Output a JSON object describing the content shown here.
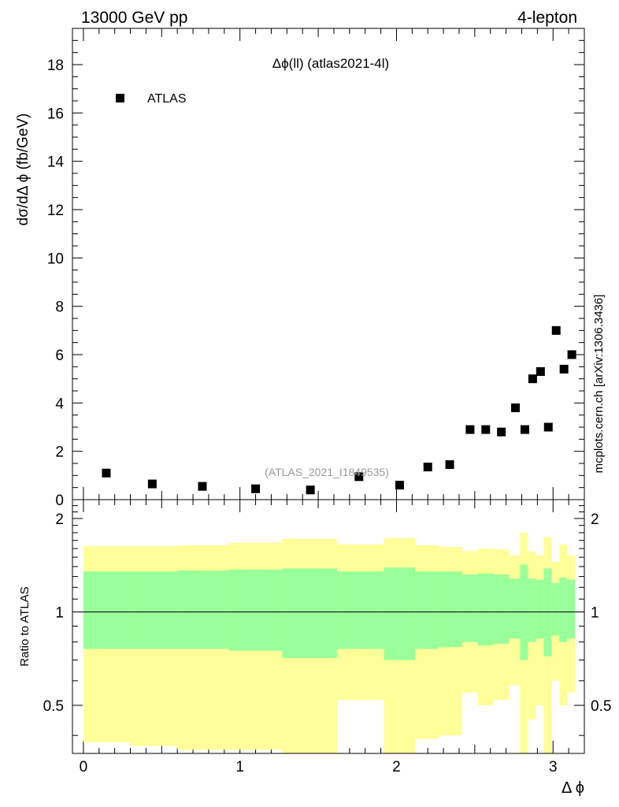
{
  "header": {
    "left": "13000 GeV pp",
    "right": "4-lepton"
  },
  "plot_title": "Δϕ(ll) (atlas2021-4l)",
  "watermark": "(ATLAS_2021_I1849535)",
  "side_label": "mcplots.cern.ch [arXiv:1306.3436]",
  "chart_data": [
    {
      "type": "scatter",
      "panel": "main",
      "ylabel": "dσ/dΔ ϕ (fb/GeV)",
      "xlim": [
        -0.07,
        3.2
      ],
      "ylim": [
        0,
        19.5
      ],
      "yticks": [
        0,
        2,
        4,
        6,
        8,
        10,
        12,
        14,
        16,
        18
      ],
      "legend": "top-left",
      "marker_color": "#000000",
      "series": [
        {
          "name": "ATLAS",
          "x": [
            0.146,
            0.44,
            0.76,
            1.1,
            1.45,
            1.76,
            2.02,
            2.2,
            2.34,
            2.47,
            2.57,
            2.67,
            2.76,
            2.82,
            2.87,
            2.92,
            2.97,
            3.02,
            3.07,
            3.12
          ],
          "y": [
            1.1,
            0.65,
            0.55,
            0.45,
            0.4,
            0.95,
            0.6,
            1.35,
            1.45,
            2.9,
            2.9,
            2.8,
            3.8,
            2.9,
            5.0,
            5.3,
            3.0,
            7.0,
            5.4,
            6.0
          ]
        }
      ]
    },
    {
      "type": "area",
      "panel": "ratio",
      "ylabel": "Ratio to ATLAS",
      "xlabel": "Δ ϕ",
      "xlim": [
        -0.07,
        3.2
      ],
      "ylim": [
        0.35,
        2.3
      ],
      "yticks": [
        0.5,
        1,
        2
      ],
      "ytick_labels": [
        "0.5",
        "1",
        "2"
      ],
      "xticks": [
        0,
        1,
        2,
        3
      ],
      "xtick_labels": [
        "0",
        "1",
        "2",
        "3"
      ],
      "reference_line": 1,
      "band_colors": {
        "outer": "#ffff99",
        "inner": "#99ff99"
      },
      "bins": [
        {
          "lo": 0.0,
          "hi": 0.3,
          "inner": [
            0.76,
            1.35
          ],
          "outer": [
            0.38,
            1.63
          ]
        },
        {
          "lo": 0.3,
          "hi": 0.6,
          "inner": [
            0.76,
            1.35
          ],
          "outer": [
            0.37,
            1.63
          ]
        },
        {
          "lo": 0.6,
          "hi": 0.93,
          "inner": [
            0.76,
            1.36
          ],
          "outer": [
            0.36,
            1.64
          ]
        },
        {
          "lo": 0.93,
          "hi": 1.27,
          "inner": [
            0.75,
            1.37
          ],
          "outer": [
            0.36,
            1.67
          ]
        },
        {
          "lo": 1.27,
          "hi": 1.62,
          "inner": [
            0.71,
            1.38
          ],
          "outer": [
            0.35,
            1.72
          ]
        },
        {
          "lo": 1.62,
          "hi": 1.92,
          "inner": [
            0.76,
            1.35
          ],
          "outer": [
            0.52,
            1.65
          ]
        },
        {
          "lo": 1.92,
          "hi": 2.12,
          "inner": [
            0.7,
            1.39
          ],
          "outer": [
            0.35,
            1.73
          ]
        },
        {
          "lo": 2.12,
          "hi": 2.27,
          "inner": [
            0.76,
            1.35
          ],
          "outer": [
            0.39,
            1.64
          ]
        },
        {
          "lo": 2.27,
          "hi": 2.42,
          "inner": [
            0.77,
            1.35
          ],
          "outer": [
            0.4,
            1.62
          ]
        },
        {
          "lo": 2.42,
          "hi": 2.52,
          "inner": [
            0.8,
            1.32
          ],
          "outer": [
            0.55,
            1.57
          ]
        },
        {
          "lo": 2.52,
          "hi": 2.62,
          "inner": [
            0.78,
            1.33
          ],
          "outer": [
            0.5,
            1.6
          ]
        },
        {
          "lo": 2.62,
          "hi": 2.72,
          "inner": [
            0.79,
            1.32
          ],
          "outer": [
            0.52,
            1.59
          ]
        },
        {
          "lo": 2.72,
          "hi": 2.79,
          "inner": [
            0.82,
            1.28
          ],
          "outer": [
            0.58,
            1.52
          ]
        },
        {
          "lo": 2.79,
          "hi": 2.84,
          "inner": [
            0.7,
            1.42
          ],
          "outer": [
            0.35,
            1.8
          ]
        },
        {
          "lo": 2.84,
          "hi": 2.89,
          "inner": [
            0.8,
            1.28
          ],
          "outer": [
            0.45,
            1.57
          ]
        },
        {
          "lo": 2.89,
          "hi": 2.94,
          "inner": [
            0.82,
            1.27
          ],
          "outer": [
            0.5,
            1.52
          ]
        },
        {
          "lo": 2.94,
          "hi": 2.99,
          "inner": [
            0.72,
            1.38
          ],
          "outer": [
            0.35,
            1.74
          ]
        },
        {
          "lo": 2.99,
          "hi": 3.04,
          "inner": [
            0.84,
            1.24
          ],
          "outer": [
            0.6,
            1.45
          ]
        },
        {
          "lo": 3.04,
          "hi": 3.09,
          "inner": [
            0.8,
            1.29
          ],
          "outer": [
            0.5,
            1.65
          ]
        },
        {
          "lo": 3.09,
          "hi": 3.14,
          "inner": [
            0.82,
            1.27
          ],
          "outer": [
            0.55,
            1.52
          ]
        }
      ]
    }
  ]
}
